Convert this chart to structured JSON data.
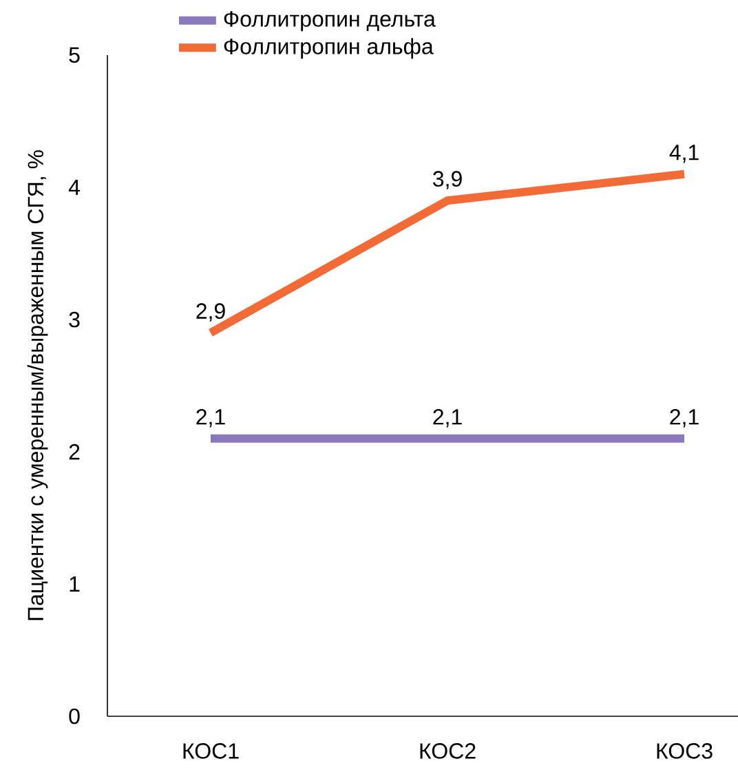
{
  "chart_data": {
    "type": "line",
    "ylabel": "Пациентки с умеренным/выраженным СГЯ, %",
    "categories": [
      "КОС1",
      "КОС2",
      "КОС3"
    ],
    "series": [
      {
        "name": "Фоллитропин дельта",
        "color": "#8a78bd",
        "values": [
          2.1,
          2.1,
          2.1
        ],
        "value_labels": [
          "2,1",
          "2,1",
          "2,1"
        ]
      },
      {
        "name": "Фоллитропин альфа",
        "color": "#f26a36",
        "values": [
          2.9,
          3.9,
          4.1
        ],
        "value_labels": [
          "2,9",
          "3,9",
          "4,1"
        ]
      }
    ],
    "ylim": [
      0,
      5
    ],
    "yticks": [
      0,
      1,
      2,
      3,
      4,
      5
    ],
    "grid": false,
    "legend": "top",
    "marker": "none",
    "line_style": "solid"
  }
}
